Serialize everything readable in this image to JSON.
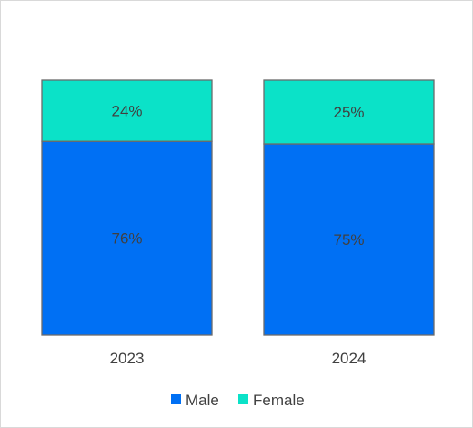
{
  "chart_data": {
    "type": "bar",
    "stacked": true,
    "categories": [
      "2023",
      "2024"
    ],
    "series": [
      {
        "name": "Male",
        "values": [
          76,
          75
        ],
        "labels": [
          "76%",
          "75%"
        ],
        "color": "#0070F4"
      },
      {
        "name": "Female",
        "values": [
          24,
          25
        ],
        "labels": [
          "24%",
          "25%"
        ],
        "color": "#0BE2C8"
      }
    ],
    "ylim": [
      0,
      100
    ],
    "grid": false,
    "legend": "bottom",
    "bar_outline_color": "#6B6B6B"
  }
}
